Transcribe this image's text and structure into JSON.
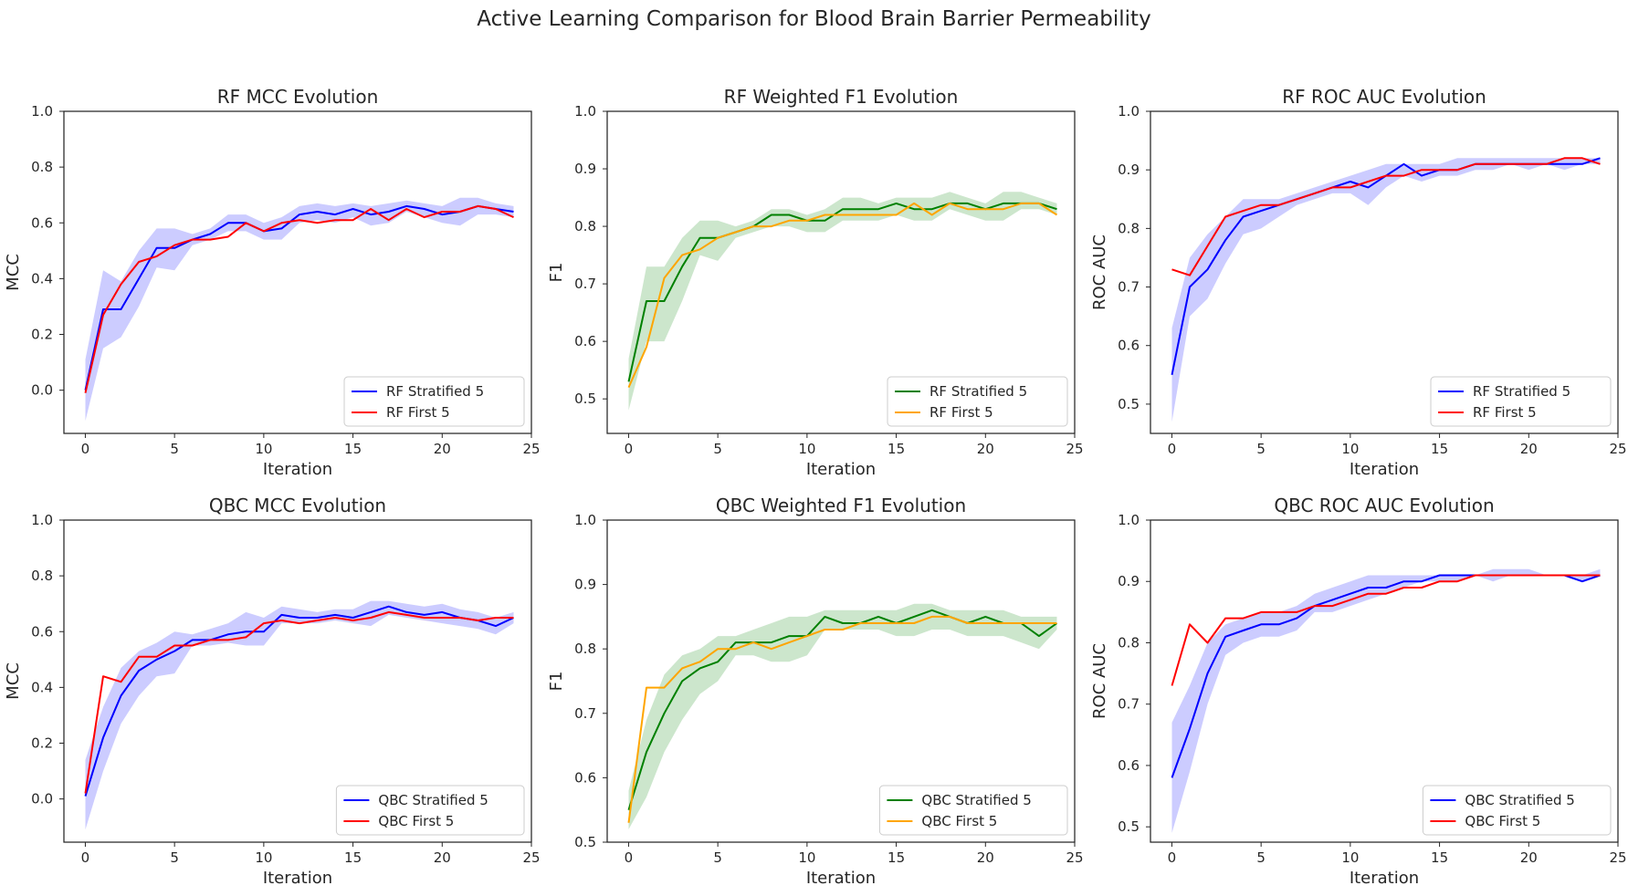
{
  "figure": {
    "title": "Active Learning Comparison for Blood Brain Barrier Permeability"
  },
  "chart_data": [
    {
      "type": "line",
      "title": "RF MCC Evolution",
      "xlabel": "Iteration",
      "ylabel": "MCC",
      "xlim": [
        -1.2,
        25
      ],
      "ylim": [
        -0.155,
        1.0
      ],
      "xticks": [
        0,
        5,
        10,
        15,
        20,
        25
      ],
      "yticks": [
        0.0,
        0.2,
        0.4,
        0.6,
        0.8,
        1.0
      ],
      "grid": false,
      "legend": "bottom-right",
      "band_color": "#0000ff",
      "x": [
        0,
        1,
        2,
        3,
        4,
        5,
        6,
        7,
        8,
        9,
        10,
        11,
        12,
        13,
        14,
        15,
        16,
        17,
        18,
        19,
        20,
        21,
        22,
        23,
        24
      ],
      "series": [
        {
          "name": "RF Stratified 5",
          "color": "#0000ff",
          "values": [
            0.0,
            0.29,
            0.29,
            0.4,
            0.51,
            0.51,
            0.54,
            0.56,
            0.6,
            0.6,
            0.57,
            0.58,
            0.63,
            0.64,
            0.63,
            0.65,
            0.63,
            0.64,
            0.66,
            0.65,
            0.63,
            0.64,
            0.66,
            0.65,
            0.64
          ],
          "lower": [
            -0.11,
            0.15,
            0.19,
            0.3,
            0.44,
            0.43,
            0.52,
            0.54,
            0.57,
            0.57,
            0.54,
            0.54,
            0.6,
            0.61,
            0.6,
            0.62,
            0.59,
            0.6,
            0.64,
            0.62,
            0.6,
            0.59,
            0.63,
            0.63,
            0.62
          ],
          "upper": [
            0.11,
            0.43,
            0.39,
            0.5,
            0.58,
            0.58,
            0.56,
            0.58,
            0.63,
            0.63,
            0.6,
            0.62,
            0.66,
            0.67,
            0.66,
            0.67,
            0.66,
            0.67,
            0.68,
            0.67,
            0.66,
            0.69,
            0.69,
            0.67,
            0.66
          ]
        },
        {
          "name": "RF First 5",
          "color": "#ff0000",
          "values": [
            -0.01,
            0.27,
            0.38,
            0.46,
            0.48,
            0.52,
            0.54,
            0.54,
            0.55,
            0.6,
            0.57,
            0.6,
            0.61,
            0.6,
            0.61,
            0.61,
            0.65,
            0.61,
            0.65,
            0.62,
            0.64,
            0.64,
            0.66,
            0.65,
            0.62
          ]
        }
      ]
    },
    {
      "type": "line",
      "title": "RF Weighted F1 Evolution",
      "xlabel": "Iteration",
      "ylabel": "F1",
      "xlim": [
        -1.2,
        25
      ],
      "ylim": [
        0.44,
        1.0
      ],
      "xticks": [
        0,
        5,
        10,
        15,
        20,
        25
      ],
      "yticks": [
        0.5,
        0.6,
        0.7,
        0.8,
        0.9,
        1.0
      ],
      "grid": false,
      "legend": "bottom-right",
      "band_color": "#008000",
      "x": [
        0,
        1,
        2,
        3,
        4,
        5,
        6,
        7,
        8,
        9,
        10,
        11,
        12,
        13,
        14,
        15,
        16,
        17,
        18,
        19,
        20,
        21,
        22,
        23,
        24
      ],
      "series": [
        {
          "name": "RF Stratified 5",
          "color": "#008000",
          "values": [
            0.53,
            0.67,
            0.67,
            0.73,
            0.78,
            0.78,
            0.79,
            0.8,
            0.82,
            0.82,
            0.81,
            0.81,
            0.83,
            0.83,
            0.83,
            0.84,
            0.83,
            0.83,
            0.84,
            0.84,
            0.83,
            0.84,
            0.84,
            0.84,
            0.83
          ],
          "lower": [
            0.48,
            0.6,
            0.6,
            0.67,
            0.75,
            0.74,
            0.78,
            0.79,
            0.8,
            0.8,
            0.79,
            0.79,
            0.81,
            0.81,
            0.81,
            0.82,
            0.81,
            0.81,
            0.83,
            0.82,
            0.81,
            0.81,
            0.83,
            0.83,
            0.82
          ],
          "upper": [
            0.57,
            0.73,
            0.73,
            0.78,
            0.81,
            0.81,
            0.8,
            0.81,
            0.83,
            0.83,
            0.82,
            0.83,
            0.85,
            0.85,
            0.84,
            0.85,
            0.85,
            0.85,
            0.86,
            0.85,
            0.84,
            0.86,
            0.86,
            0.85,
            0.84
          ]
        },
        {
          "name": "RF First 5",
          "color": "#ffa500",
          "values": [
            0.52,
            0.59,
            0.71,
            0.75,
            0.76,
            0.78,
            0.79,
            0.8,
            0.8,
            0.81,
            0.81,
            0.82,
            0.82,
            0.82,
            0.82,
            0.82,
            0.84,
            0.82,
            0.84,
            0.83,
            0.83,
            0.83,
            0.84,
            0.84,
            0.82
          ]
        }
      ]
    },
    {
      "type": "line",
      "title": "RF ROC AUC Evolution",
      "xlabel": "Iteration",
      "ylabel": "ROC AUC",
      "xlim": [
        -1.2,
        25
      ],
      "ylim": [
        0.45,
        1.0
      ],
      "xticks": [
        0,
        5,
        10,
        15,
        20,
        25
      ],
      "yticks": [
        0.5,
        0.6,
        0.7,
        0.8,
        0.9,
        1.0
      ],
      "grid": false,
      "legend": "bottom-right",
      "band_color": "#0000ff",
      "x": [
        0,
        1,
        2,
        3,
        4,
        5,
        6,
        7,
        8,
        9,
        10,
        11,
        12,
        13,
        14,
        15,
        16,
        17,
        18,
        19,
        20,
        21,
        22,
        23,
        24
      ],
      "series": [
        {
          "name": "RF Stratified 5",
          "color": "#0000ff",
          "values": [
            0.55,
            0.7,
            0.73,
            0.78,
            0.82,
            0.83,
            0.84,
            0.85,
            0.86,
            0.87,
            0.88,
            0.87,
            0.89,
            0.91,
            0.89,
            0.9,
            0.9,
            0.91,
            0.91,
            0.91,
            0.91,
            0.91,
            0.91,
            0.91,
            0.92
          ],
          "lower": [
            0.47,
            0.65,
            0.68,
            0.74,
            0.79,
            0.8,
            0.82,
            0.84,
            0.85,
            0.86,
            0.86,
            0.84,
            0.87,
            0.89,
            0.88,
            0.89,
            0.89,
            0.9,
            0.9,
            0.91,
            0.9,
            0.91,
            0.9,
            0.91,
            0.91
          ],
          "upper": [
            0.63,
            0.75,
            0.79,
            0.82,
            0.85,
            0.85,
            0.85,
            0.86,
            0.87,
            0.88,
            0.89,
            0.9,
            0.91,
            0.91,
            0.91,
            0.91,
            0.92,
            0.92,
            0.92,
            0.92,
            0.92,
            0.92,
            0.92,
            0.92,
            0.92
          ]
        },
        {
          "name": "RF First 5",
          "color": "#ff0000",
          "values": [
            0.73,
            0.72,
            0.77,
            0.82,
            0.83,
            0.84,
            0.84,
            0.85,
            0.86,
            0.87,
            0.87,
            0.88,
            0.89,
            0.89,
            0.9,
            0.9,
            0.9,
            0.91,
            0.91,
            0.91,
            0.91,
            0.91,
            0.92,
            0.92,
            0.91
          ]
        }
      ]
    },
    {
      "type": "line",
      "title": "QBC MCC Evolution",
      "xlabel": "Iteration",
      "ylabel": "MCC",
      "xlim": [
        -1.2,
        25
      ],
      "ylim": [
        -0.155,
        1.0
      ],
      "xticks": [
        0,
        5,
        10,
        15,
        20,
        25
      ],
      "yticks": [
        0.0,
        0.2,
        0.4,
        0.6,
        0.8,
        1.0
      ],
      "grid": false,
      "legend": "bottom-right",
      "band_color": "#0000ff",
      "x": [
        0,
        1,
        2,
        3,
        4,
        5,
        6,
        7,
        8,
        9,
        10,
        11,
        12,
        13,
        14,
        15,
        16,
        17,
        18,
        19,
        20,
        21,
        22,
        23,
        24
      ],
      "series": [
        {
          "name": "QBC Stratified 5",
          "color": "#0000ff",
          "values": [
            0.01,
            0.22,
            0.37,
            0.46,
            0.5,
            0.53,
            0.57,
            0.57,
            0.59,
            0.6,
            0.6,
            0.66,
            0.65,
            0.65,
            0.66,
            0.65,
            0.67,
            0.69,
            0.67,
            0.66,
            0.67,
            0.65,
            0.64,
            0.62,
            0.65
          ],
          "lower": [
            -0.11,
            0.1,
            0.27,
            0.37,
            0.44,
            0.45,
            0.55,
            0.55,
            0.56,
            0.55,
            0.55,
            0.63,
            0.63,
            0.63,
            0.64,
            0.63,
            0.62,
            0.66,
            0.65,
            0.64,
            0.63,
            0.62,
            0.61,
            0.59,
            0.63
          ],
          "upper": [
            0.14,
            0.33,
            0.47,
            0.53,
            0.56,
            0.6,
            0.59,
            0.61,
            0.63,
            0.67,
            0.65,
            0.69,
            0.68,
            0.67,
            0.68,
            0.68,
            0.71,
            0.71,
            0.7,
            0.69,
            0.7,
            0.68,
            0.67,
            0.65,
            0.67
          ]
        },
        {
          "name": "QBC First 5",
          "color": "#ff0000",
          "values": [
            0.02,
            0.44,
            0.42,
            0.51,
            0.51,
            0.55,
            0.55,
            0.57,
            0.57,
            0.58,
            0.63,
            0.64,
            0.63,
            0.64,
            0.65,
            0.64,
            0.65,
            0.67,
            0.66,
            0.65,
            0.65,
            0.65,
            0.64,
            0.65,
            0.65
          ]
        }
      ]
    },
    {
      "type": "line",
      "title": "QBC Weighted F1 Evolution",
      "xlabel": "Iteration",
      "ylabel": "F1",
      "xlim": [
        -1.2,
        25
      ],
      "ylim": [
        0.5,
        1.0
      ],
      "xticks": [
        0,
        5,
        10,
        15,
        20,
        25
      ],
      "yticks": [
        0.5,
        0.6,
        0.7,
        0.8,
        0.9,
        1.0
      ],
      "grid": false,
      "legend": "bottom-right",
      "band_color": "#008000",
      "x": [
        0,
        1,
        2,
        3,
        4,
        5,
        6,
        7,
        8,
        9,
        10,
        11,
        12,
        13,
        14,
        15,
        16,
        17,
        18,
        19,
        20,
        21,
        22,
        23,
        24
      ],
      "series": [
        {
          "name": "QBC Stratified 5",
          "color": "#008000",
          "values": [
            0.55,
            0.64,
            0.7,
            0.75,
            0.77,
            0.78,
            0.81,
            0.81,
            0.81,
            0.82,
            0.82,
            0.85,
            0.84,
            0.84,
            0.85,
            0.84,
            0.85,
            0.86,
            0.85,
            0.84,
            0.85,
            0.84,
            0.84,
            0.82,
            0.84
          ],
          "lower": [
            0.52,
            0.57,
            0.64,
            0.69,
            0.73,
            0.75,
            0.79,
            0.79,
            0.78,
            0.78,
            0.79,
            0.83,
            0.83,
            0.83,
            0.83,
            0.82,
            0.82,
            0.83,
            0.83,
            0.82,
            0.82,
            0.82,
            0.81,
            0.8,
            0.83
          ],
          "upper": [
            0.58,
            0.69,
            0.76,
            0.79,
            0.8,
            0.82,
            0.82,
            0.83,
            0.84,
            0.85,
            0.85,
            0.86,
            0.86,
            0.86,
            0.86,
            0.86,
            0.87,
            0.87,
            0.86,
            0.86,
            0.86,
            0.86,
            0.85,
            0.85,
            0.85
          ]
        },
        {
          "name": "QBC First 5",
          "color": "#ffa500",
          "values": [
            0.53,
            0.74,
            0.74,
            0.77,
            0.78,
            0.8,
            0.8,
            0.81,
            0.8,
            0.81,
            0.82,
            0.83,
            0.83,
            0.84,
            0.84,
            0.84,
            0.84,
            0.85,
            0.85,
            0.84,
            0.84,
            0.84,
            0.84,
            0.84,
            0.84
          ]
        }
      ]
    },
    {
      "type": "line",
      "title": "QBC ROC AUC Evolution",
      "xlabel": "Iteration",
      "ylabel": "ROC AUC",
      "xlim": [
        -1.2,
        25
      ],
      "ylim": [
        0.475,
        1.0
      ],
      "xticks": [
        0,
        5,
        10,
        15,
        20,
        25
      ],
      "yticks": [
        0.5,
        0.6,
        0.7,
        0.8,
        0.9,
        1.0
      ],
      "grid": false,
      "legend": "bottom-right",
      "band_color": "#0000ff",
      "x": [
        0,
        1,
        2,
        3,
        4,
        5,
        6,
        7,
        8,
        9,
        10,
        11,
        12,
        13,
        14,
        15,
        16,
        17,
        18,
        19,
        20,
        21,
        22,
        23,
        24
      ],
      "series": [
        {
          "name": "QBC Stratified 5",
          "color": "#0000ff",
          "values": [
            0.58,
            0.66,
            0.75,
            0.81,
            0.82,
            0.83,
            0.83,
            0.84,
            0.86,
            0.87,
            0.88,
            0.89,
            0.89,
            0.9,
            0.9,
            0.91,
            0.91,
            0.91,
            0.91,
            0.91,
            0.91,
            0.91,
            0.91,
            0.9,
            0.91
          ],
          "lower": [
            0.49,
            0.59,
            0.7,
            0.78,
            0.8,
            0.81,
            0.81,
            0.82,
            0.85,
            0.85,
            0.86,
            0.87,
            0.88,
            0.89,
            0.9,
            0.9,
            0.9,
            0.91,
            0.9,
            0.91,
            0.91,
            0.91,
            0.91,
            0.9,
            0.91
          ],
          "upper": [
            0.67,
            0.73,
            0.8,
            0.83,
            0.84,
            0.85,
            0.85,
            0.86,
            0.88,
            0.89,
            0.9,
            0.91,
            0.91,
            0.91,
            0.91,
            0.91,
            0.91,
            0.91,
            0.92,
            0.92,
            0.92,
            0.91,
            0.91,
            0.91,
            0.92
          ]
        },
        {
          "name": "QBC First 5",
          "color": "#ff0000",
          "values": [
            0.73,
            0.83,
            0.8,
            0.84,
            0.84,
            0.85,
            0.85,
            0.85,
            0.86,
            0.86,
            0.87,
            0.88,
            0.88,
            0.89,
            0.89,
            0.9,
            0.9,
            0.91,
            0.91,
            0.91,
            0.91,
            0.91,
            0.91,
            0.91,
            0.91
          ]
        }
      ]
    }
  ]
}
